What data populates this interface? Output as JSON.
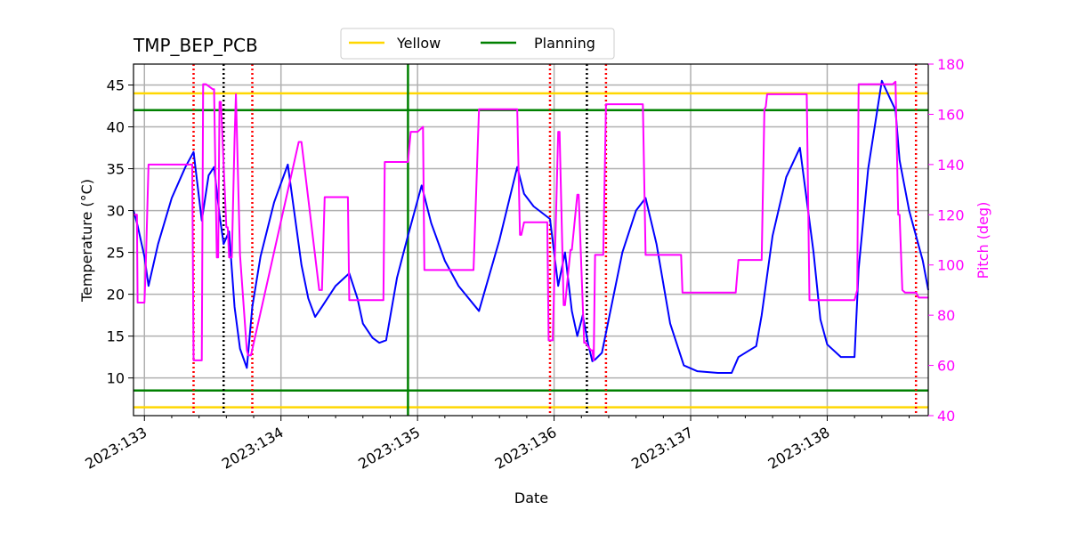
{
  "chart_data": {
    "type": "line",
    "title": "TMP_BEP_PCB",
    "xlabel": "Date",
    "ylabel": "Temperature ($^\\circ$C)",
    "ylabel_display": "Temperature (°C)",
    "y2label": "Pitch (deg)",
    "xlim": [
      132.92,
      138.74
    ],
    "ylim": [
      5.5,
      47.5
    ],
    "y2lim": [
      40,
      180
    ],
    "x_ticks": [
      133,
      134,
      135,
      136,
      137,
      138
    ],
    "x_tick_labels": [
      "2023:133",
      "2023:134",
      "2023:135",
      "2023:136",
      "2023:137",
      "2023:138"
    ],
    "y_ticks": [
      10,
      15,
      20,
      25,
      30,
      35,
      40,
      45
    ],
    "y2_ticks": [
      40,
      60,
      80,
      100,
      120,
      140,
      160,
      180
    ],
    "grid": true,
    "legend": {
      "placement": "top-center-outside",
      "entries": [
        "Yellow",
        "Planning"
      ]
    },
    "colors": {
      "temperature": "#0000ff",
      "pitch": "#ff00ff",
      "yellow": "#ffd700",
      "planning": "#008000",
      "red_marker": "#ff0000",
      "black_marker": "#000000",
      "grid": "#b0b0b0"
    },
    "limits": {
      "yellow": [
        6.5,
        44.0
      ],
      "planning": [
        8.5,
        42.0
      ]
    },
    "vertical_markers": {
      "red_dotted": [
        133.36,
        133.79,
        135.97,
        136.38,
        138.65
      ],
      "black_dotted": [
        133.58,
        136.24
      ],
      "green_solid": [
        134.93
      ]
    },
    "series": [
      {
        "name": "Temperature",
        "axis": "left",
        "x": [
          132.92,
          132.95,
          133.0,
          133.03,
          133.1,
          133.2,
          133.3,
          133.36,
          133.42,
          133.47,
          133.51,
          133.55,
          133.58,
          133.62,
          133.66,
          133.7,
          133.75,
          133.79,
          133.85,
          133.95,
          134.05,
          134.15,
          134.2,
          134.25,
          134.3,
          134.4,
          134.5,
          134.56,
          134.6,
          134.67,
          134.72,
          134.77,
          134.85,
          134.93,
          135.03,
          135.1,
          135.2,
          135.3,
          135.45,
          135.6,
          135.73,
          135.78,
          135.85,
          135.97,
          136.03,
          136.08,
          136.13,
          136.17,
          136.21,
          136.25,
          136.28,
          136.3,
          136.35,
          136.4,
          136.5,
          136.6,
          136.67,
          136.75,
          136.85,
          136.9,
          136.95,
          137.05,
          137.2,
          137.3,
          137.35,
          137.4,
          137.48,
          137.52,
          137.6,
          137.7,
          137.8,
          137.9,
          137.95,
          138.0,
          138.1,
          138.2,
          138.23,
          138.3,
          138.4,
          138.5,
          138.53,
          138.6,
          138.7,
          138.74
        ],
        "values": [
          30.0,
          28.2,
          24.5,
          21.0,
          26.0,
          31.5,
          35.2,
          37.0,
          28.8,
          34.2,
          35.2,
          29.5,
          26.0,
          27.5,
          18.5,
          13.5,
          11.2,
          18.5,
          24.5,
          31.0,
          35.5,
          23.5,
          19.5,
          17.3,
          18.5,
          21.0,
          22.5,
          19.5,
          16.5,
          14.8,
          14.2,
          14.5,
          22.0,
          27.0,
          33.0,
          28.5,
          24.0,
          21.0,
          18.0,
          26.5,
          35.2,
          32.0,
          30.5,
          29.0,
          21.0,
          25.0,
          18.0,
          15.0,
          17.5,
          14.0,
          12.0,
          12.2,
          13.0,
          17.0,
          25.0,
          30.0,
          31.5,
          26.0,
          16.5,
          14.0,
          11.5,
          10.8,
          10.6,
          10.6,
          12.5,
          13.0,
          13.8,
          17.5,
          27.0,
          34.0,
          37.5,
          25.0,
          17.0,
          14.0,
          12.5,
          12.5,
          23.0,
          35.0,
          45.5,
          42.0,
          36.0,
          30.0,
          24.0,
          20.5
        ]
      },
      {
        "name": "Pitch",
        "axis": "right",
        "x": [
          132.92,
          132.945,
          132.95,
          133.0,
          133.01,
          133.03,
          133.35,
          133.36,
          133.42,
          133.43,
          133.45,
          133.5,
          133.51,
          133.53,
          133.54,
          133.55,
          133.56,
          133.6,
          133.61,
          133.62,
          133.64,
          133.66,
          133.67,
          133.7,
          133.75,
          133.76,
          133.77,
          133.78,
          134.13,
          134.15,
          134.28,
          134.3,
          134.32,
          134.49,
          134.5,
          134.75,
          134.76,
          134.93,
          134.95,
          134.96,
          135.0,
          135.04,
          135.05,
          135.41,
          135.45,
          135.46,
          135.73,
          135.75,
          135.76,
          135.78,
          135.79,
          135.95,
          135.96,
          135.98,
          135.99,
          136.03,
          136.04,
          136.07,
          136.08,
          136.12,
          136.13,
          136.17,
          136.18,
          136.22,
          136.23,
          136.27,
          136.28,
          136.29,
          136.3,
          136.36,
          136.38,
          136.39,
          136.65,
          136.67,
          136.93,
          136.94,
          137.33,
          137.35,
          137.52,
          137.54,
          137.55,
          137.56,
          137.85,
          137.87,
          138.2,
          138.22,
          138.23,
          138.24,
          138.48,
          138.5,
          138.52,
          138.53,
          138.55,
          138.57,
          138.65,
          138.67,
          138.74
        ],
        "values": [
          120,
          120,
          85,
          85,
          100,
          140,
          140,
          62,
          62,
          172,
          172,
          170,
          170,
          103,
          103,
          165,
          165,
          115,
          115,
          103,
          103,
          150,
          168,
          104,
          66,
          64,
          64,
          64,
          149,
          149,
          90,
          90,
          127,
          127,
          86,
          86,
          141,
          141,
          153,
          153,
          153,
          155,
          98,
          98,
          162,
          162,
          162,
          112,
          112,
          117,
          117,
          117,
          70,
          70,
          70,
          153,
          153,
          84,
          84,
          106,
          106,
          128,
          128,
          69,
          69,
          66,
          66,
          62,
          104,
          104,
          164,
          164,
          164,
          104,
          104,
          89,
          89,
          102,
          102,
          162,
          163,
          168,
          168,
          86,
          86,
          90,
          172,
          172,
          172,
          173,
          120,
          120,
          90,
          89,
          89,
          87,
          87
        ]
      }
    ]
  }
}
